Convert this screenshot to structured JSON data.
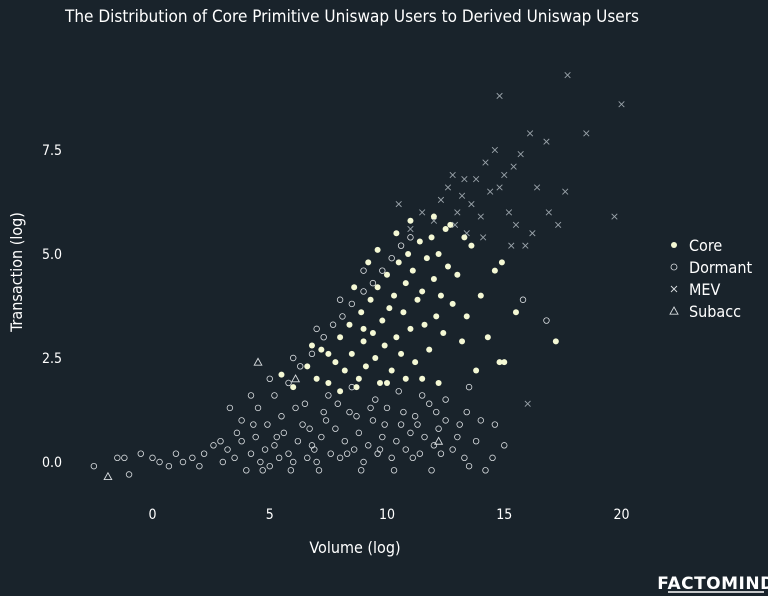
{
  "chart_data": {
    "type": "scatter",
    "title": "The Distribution of Core Primitive Uniswap Users to Derived Uniswap Users",
    "xlabel": "Volume (log)",
    "ylabel": "Transaction (log)",
    "xlim": [
      -3,
      20.5
    ],
    "ylim": [
      -0.4,
      9.5
    ],
    "xticks": [
      "0",
      "5",
      "10",
      "15",
      "20"
    ],
    "xtick_values": [
      0,
      5,
      10,
      15,
      20
    ],
    "yticks": [
      "0.0",
      "2.5",
      "5.0",
      "7.5"
    ],
    "ytick_values": [
      0,
      2.5,
      5,
      7.5
    ],
    "grid": false,
    "legend_position": "right",
    "series": [
      {
        "name": "Core",
        "marker": "filled-circle",
        "color": "#f4f8d4",
        "points": [
          [
            5.5,
            2.1
          ],
          [
            6.0,
            1.8
          ],
          [
            6.6,
            2.3
          ],
          [
            7.0,
            2.0
          ],
          [
            7.2,
            2.7
          ],
          [
            7.5,
            1.9
          ],
          [
            7.8,
            2.4
          ],
          [
            8.0,
            3.0
          ],
          [
            8.2,
            2.2
          ],
          [
            8.4,
            3.3
          ],
          [
            8.5,
            2.6
          ],
          [
            8.7,
            1.8
          ],
          [
            8.9,
            3.6
          ],
          [
            9.0,
            2.9
          ],
          [
            9.1,
            2.3
          ],
          [
            9.3,
            3.9
          ],
          [
            9.4,
            3.1
          ],
          [
            9.5,
            2.5
          ],
          [
            9.6,
            4.2
          ],
          [
            9.7,
            1.9
          ],
          [
            9.8,
            3.4
          ],
          [
            9.9,
            2.8
          ],
          [
            10.0,
            4.5
          ],
          [
            10.1,
            3.7
          ],
          [
            10.2,
            2.2
          ],
          [
            10.3,
            4.0
          ],
          [
            10.4,
            3.0
          ],
          [
            10.5,
            4.8
          ],
          [
            10.6,
            2.6
          ],
          [
            10.7,
            3.6
          ],
          [
            10.8,
            4.3
          ],
          [
            10.9,
            5.0
          ],
          [
            11.0,
            3.2
          ],
          [
            11.1,
            4.6
          ],
          [
            11.2,
            2.4
          ],
          [
            11.3,
            3.9
          ],
          [
            11.4,
            5.3
          ],
          [
            11.5,
            4.1
          ],
          [
            11.6,
            3.3
          ],
          [
            11.7,
            4.9
          ],
          [
            11.8,
            2.7
          ],
          [
            11.9,
            5.4
          ],
          [
            12.0,
            4.4
          ],
          [
            12.1,
            3.5
          ],
          [
            12.2,
            5.0
          ],
          [
            12.3,
            4.0
          ],
          [
            12.4,
            3.1
          ],
          [
            12.5,
            5.6
          ],
          [
            12.6,
            4.7
          ],
          [
            12.8,
            3.8
          ],
          [
            13.0,
            4.5
          ],
          [
            13.2,
            2.9
          ],
          [
            13.4,
            3.5
          ],
          [
            13.6,
            5.2
          ],
          [
            13.8,
            2.2
          ],
          [
            14.0,
            4.0
          ],
          [
            14.3,
            3.0
          ],
          [
            14.6,
            4.6
          ],
          [
            14.8,
            2.4
          ],
          [
            14.9,
            4.8
          ],
          [
            15.0,
            2.4
          ],
          [
            15.5,
            3.6
          ],
          [
            17.2,
            2.9
          ],
          [
            8.6,
            4.2
          ],
          [
            9.2,
            4.8
          ],
          [
            9.6,
            5.1
          ],
          [
            10.4,
            5.5
          ],
          [
            11.0,
            5.8
          ],
          [
            12.0,
            5.9
          ],
          [
            12.7,
            5.7
          ],
          [
            13.3,
            5.4
          ],
          [
            10.0,
            1.9
          ],
          [
            8.0,
            1.7
          ],
          [
            7.5,
            2.6
          ],
          [
            8.8,
            2.0
          ],
          [
            11.5,
            2.0
          ],
          [
            12.2,
            1.9
          ],
          [
            6.8,
            2.8
          ],
          [
            9.0,
            3.2
          ],
          [
            10.8,
            2.0
          ]
        ]
      },
      {
        "name": "Dormant",
        "marker": "open-circle",
        "color": "#d9dde0",
        "points": [
          [
            -2.5,
            -0.1
          ],
          [
            -1.5,
            0.1
          ],
          [
            -1.2,
            0.1
          ],
          [
            -0.5,
            0.2
          ],
          [
            -1.0,
            -0.3
          ],
          [
            0.0,
            0.1
          ],
          [
            0.3,
            0.0
          ],
          [
            0.7,
            -0.1
          ],
          [
            1.0,
            0.2
          ],
          [
            1.3,
            0.0
          ],
          [
            1.7,
            0.1
          ],
          [
            2.0,
            -0.1
          ],
          [
            2.2,
            0.2
          ],
          [
            2.6,
            0.4
          ],
          [
            3.0,
            0.0
          ],
          [
            3.2,
            0.3
          ],
          [
            3.5,
            0.1
          ],
          [
            3.8,
            0.5
          ],
          [
            4.0,
            -0.2
          ],
          [
            4.2,
            0.2
          ],
          [
            4.4,
            0.6
          ],
          [
            4.6,
            0.0
          ],
          [
            4.8,
            0.3
          ],
          [
            5.0,
            -0.1
          ],
          [
            5.2,
            0.4
          ],
          [
            5.4,
            0.1
          ],
          [
            5.6,
            0.7
          ],
          [
            5.8,
            0.2
          ],
          [
            6.0,
            0.0
          ],
          [
            6.2,
            0.5
          ],
          [
            6.4,
            0.9
          ],
          [
            6.6,
            0.1
          ],
          [
            6.8,
            0.4
          ],
          [
            7.0,
            0.0
          ],
          [
            7.2,
            0.6
          ],
          [
            7.4,
            1.0
          ],
          [
            7.6,
            0.2
          ],
          [
            7.8,
            0.8
          ],
          [
            8.0,
            0.1
          ],
          [
            8.2,
            0.5
          ],
          [
            8.4,
            1.2
          ],
          [
            8.6,
            0.3
          ],
          [
            8.8,
            0.7
          ],
          [
            9.0,
            0.0
          ],
          [
            9.2,
            0.4
          ],
          [
            9.4,
            1.0
          ],
          [
            9.6,
            0.2
          ],
          [
            9.8,
            0.6
          ],
          [
            10.0,
            1.3
          ],
          [
            10.2,
            0.1
          ],
          [
            10.4,
            0.5
          ],
          [
            10.6,
            0.9
          ],
          [
            10.8,
            0.3
          ],
          [
            11.0,
            0.7
          ],
          [
            11.2,
            1.1
          ],
          [
            11.4,
            0.2
          ],
          [
            11.6,
            0.6
          ],
          [
            11.8,
            1.4
          ],
          [
            12.0,
            0.4
          ],
          [
            12.2,
            0.8
          ],
          [
            12.5,
            1.0
          ],
          [
            12.8,
            0.3
          ],
          [
            13.0,
            0.6
          ],
          [
            13.4,
            1.2
          ],
          [
            13.8,
            0.5
          ],
          [
            14.2,
            -0.2
          ],
          [
            14.6,
            0.9
          ],
          [
            15.0,
            0.4
          ],
          [
            15.8,
            3.9
          ],
          [
            16.8,
            3.4
          ],
          [
            5.2,
            1.6
          ],
          [
            5.8,
            1.9
          ],
          [
            6.3,
            2.3
          ],
          [
            6.8,
            2.6
          ],
          [
            7.3,
            3.0
          ],
          [
            7.7,
            3.3
          ],
          [
            8.1,
            3.5
          ],
          [
            8.5,
            3.8
          ],
          [
            9.0,
            4.1
          ],
          [
            9.4,
            4.3
          ],
          [
            9.8,
            4.6
          ],
          [
            10.2,
            4.9
          ],
          [
            10.6,
            5.2
          ],
          [
            11.0,
            5.4
          ],
          [
            4.5,
            1.3
          ],
          [
            4.2,
            1.6
          ],
          [
            3.8,
            1.0
          ],
          [
            3.3,
            1.3
          ],
          [
            5.0,
            2.0
          ],
          [
            6.0,
            2.5
          ],
          [
            7.0,
            3.2
          ],
          [
            8.0,
            3.9
          ],
          [
            9.0,
            4.6
          ],
          [
            6.5,
            1.4
          ],
          [
            7.5,
            1.6
          ],
          [
            8.5,
            1.8
          ],
          [
            9.5,
            1.5
          ],
          [
            10.5,
            1.7
          ],
          [
            11.5,
            1.6
          ],
          [
            12.5,
            1.5
          ],
          [
            13.5,
            1.8
          ],
          [
            4.9,
            0.9
          ],
          [
            5.5,
            1.1
          ],
          [
            6.1,
            1.3
          ],
          [
            6.7,
            0.8
          ],
          [
            7.3,
            1.2
          ],
          [
            7.9,
            1.4
          ],
          [
            8.7,
            1.1
          ],
          [
            9.3,
            1.3
          ],
          [
            9.9,
            0.9
          ],
          [
            10.7,
            1.2
          ],
          [
            11.3,
            0.9
          ],
          [
            12.1,
            1.2
          ],
          [
            13.1,
            0.9
          ],
          [
            14.0,
            1.0
          ],
          [
            3.6,
            0.7
          ],
          [
            2.9,
            0.5
          ],
          [
            4.3,
            0.9
          ],
          [
            5.3,
            0.6
          ],
          [
            6.9,
            0.3
          ],
          [
            8.3,
            0.2
          ],
          [
            9.7,
            0.3
          ],
          [
            11.1,
            0.1
          ],
          [
            12.3,
            0.2
          ],
          [
            13.3,
            0.1
          ],
          [
            4.7,
            -0.2
          ],
          [
            5.9,
            -0.2
          ],
          [
            7.1,
            -0.2
          ],
          [
            8.9,
            -0.2
          ],
          [
            10.3,
            -0.2
          ],
          [
            11.9,
            -0.2
          ],
          [
            13.5,
            -0.1
          ],
          [
            14.5,
            0.1
          ]
        ]
      },
      {
        "name": "MEV",
        "marker": "cross",
        "color": "#9ba4ab",
        "points": [
          [
            10.5,
            6.2
          ],
          [
            11.0,
            5.6
          ],
          [
            11.5,
            6.0
          ],
          [
            12.0,
            5.8
          ],
          [
            12.3,
            6.3
          ],
          [
            12.6,
            6.6
          ],
          [
            12.8,
            6.9
          ],
          [
            13.0,
            6.0
          ],
          [
            13.2,
            6.4
          ],
          [
            13.4,
            5.5
          ],
          [
            13.6,
            6.2
          ],
          [
            13.8,
            6.8
          ],
          [
            14.0,
            5.9
          ],
          [
            14.2,
            7.2
          ],
          [
            14.4,
            6.5
          ],
          [
            14.6,
            7.5
          ],
          [
            14.8,
            6.6
          ],
          [
            15.0,
            6.9
          ],
          [
            15.2,
            6.0
          ],
          [
            15.4,
            7.1
          ],
          [
            15.5,
            5.7
          ],
          [
            15.7,
            7.4
          ],
          [
            15.9,
            5.2
          ],
          [
            16.1,
            7.9
          ],
          [
            16.4,
            6.6
          ],
          [
            16.8,
            7.7
          ],
          [
            16.9,
            6.0
          ],
          [
            17.3,
            5.7
          ],
          [
            17.6,
            6.5
          ],
          [
            17.7,
            9.3
          ],
          [
            18.5,
            7.9
          ],
          [
            19.7,
            5.9
          ],
          [
            20.0,
            8.6
          ],
          [
            14.8,
            8.8
          ],
          [
            13.3,
            6.8
          ],
          [
            12.9,
            5.7
          ],
          [
            14.1,
            5.4
          ],
          [
            15.3,
            5.2
          ],
          [
            16.2,
            5.5
          ],
          [
            16.0,
            1.4
          ]
        ]
      },
      {
        "name": "Subacc",
        "marker": "triangle",
        "color": "#d9dde0",
        "points": [
          [
            -1.9,
            -0.35
          ],
          [
            4.5,
            2.4
          ],
          [
            12.2,
            0.5
          ],
          [
            6.1,
            2.0
          ]
        ]
      }
    ]
  },
  "brand": {
    "name": "FACTOMIND"
  }
}
